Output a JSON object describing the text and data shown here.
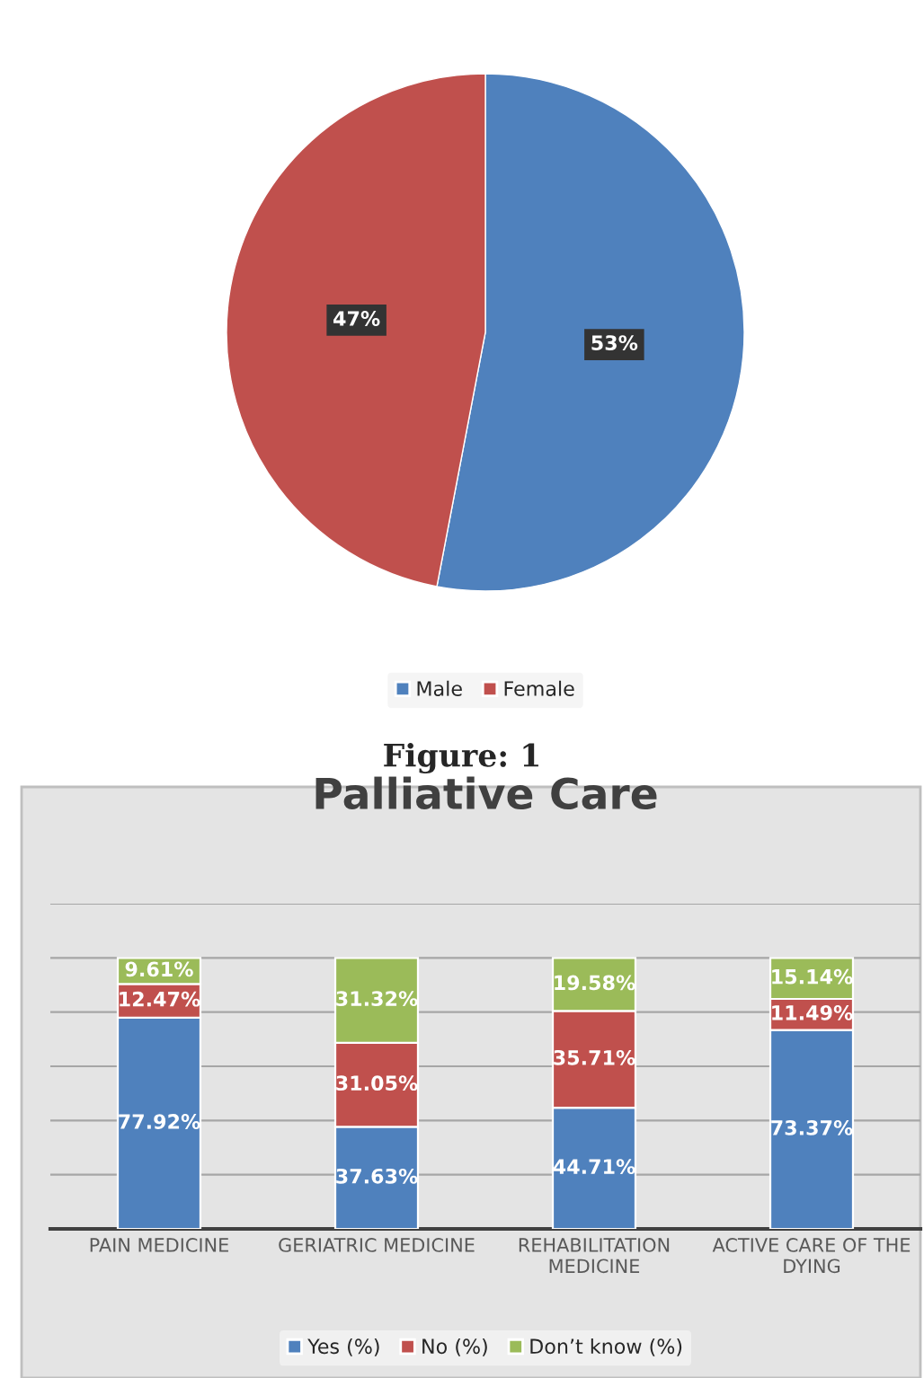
{
  "chart_data": [
    {
      "type": "pie",
      "categories": [
        "Male",
        "Female"
      ],
      "values": [
        53,
        47
      ],
      "colors": [
        "#4f81bd",
        "#c0504d"
      ],
      "value_labels": [
        "53%",
        "47%"
      ],
      "legend": "bottom",
      "annotations": [
        "Figure: 1"
      ]
    },
    {
      "type": "bar",
      "title": "Palliative Care",
      "stacked": true,
      "categories": [
        "PAIN MEDICINE",
        "GERIATRIC MEDICINE",
        "REHABILITATION\nMEDICINE",
        "ACTIVE CARE OF THE\nDYING"
      ],
      "ylim": [
        0,
        120
      ],
      "yticks": [
        {
          "value": 0,
          "label": null
        },
        {
          "value": 20,
          "label": null
        },
        {
          "value": 40,
          "label": null
        },
        {
          "value": 60,
          "label": null
        },
        {
          "value": 80,
          "label": null
        },
        {
          "value": 100,
          "label": null
        },
        {
          "value": 120,
          "label": null
        }
      ],
      "grid": "y",
      "legend": "bottom",
      "tick_labels": "x",
      "series": [
        {
          "name": "Yes (%)",
          "color": "#4f81bd",
          "values": [
            77.92,
            37.63,
            44.71,
            73.37
          ],
          "value_labels": [
            "77.92%",
            "37.63%",
            "44.71%",
            "73.37%"
          ]
        },
        {
          "name": "No (%)",
          "color": "#c0504d",
          "values": [
            12.47,
            31.05,
            35.71,
            11.49
          ],
          "value_labels": [
            "12.47%",
            "31.05%",
            "35.71%",
            "11.49%"
          ]
        },
        {
          "name": "Don’t know (%)",
          "color": "#9bbb59",
          "values": [
            9.61,
            31.32,
            19.58,
            15.14
          ],
          "value_labels": [
            "9.61%",
            "31.32%",
            "19.58%",
            "15.14%"
          ]
        }
      ]
    }
  ]
}
